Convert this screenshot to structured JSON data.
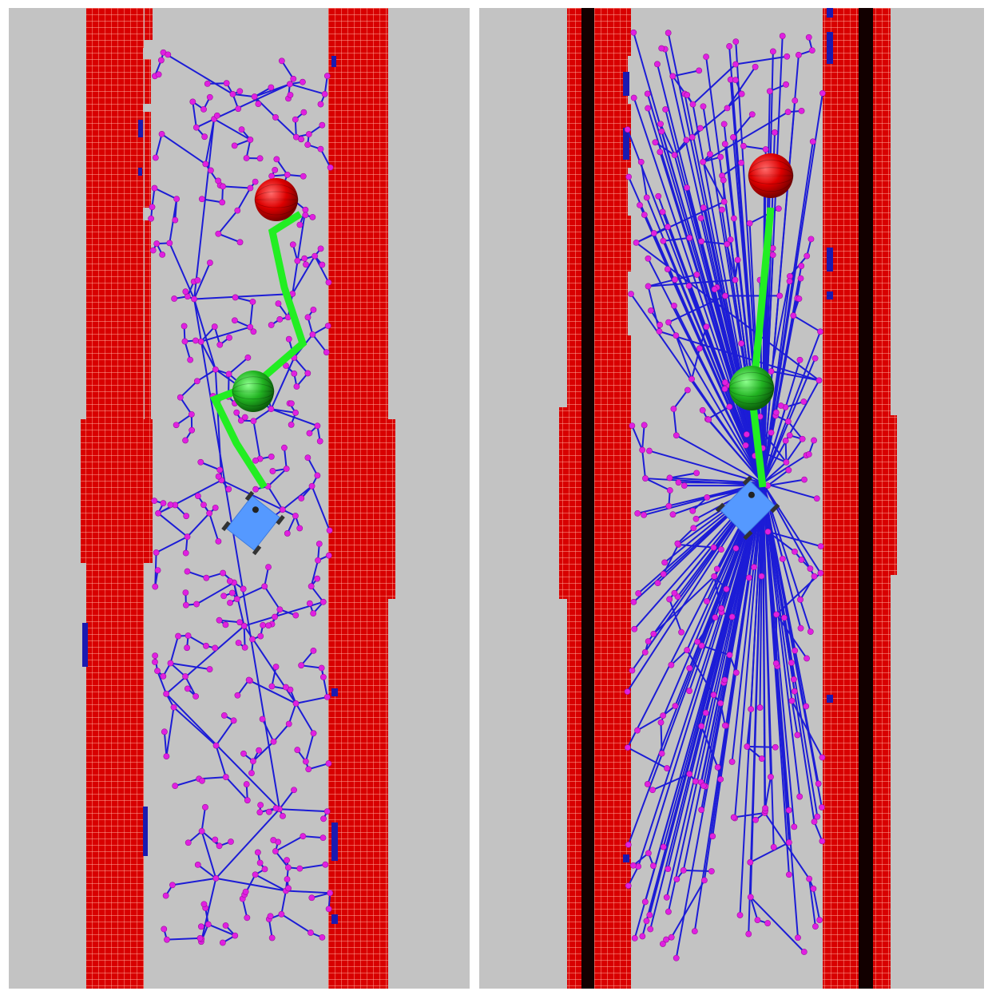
{
  "figure": {
    "panels": [
      {
        "id": "left",
        "tree_style": "random-exploration",
        "seed": 11
      },
      {
        "id": "right",
        "tree_style": "radial-from-robot",
        "seed": 27
      }
    ]
  },
  "colors": {
    "background": "#c3c3c3",
    "obstacle_voxel": "#d80000",
    "obstacle_grid_line": "#ffb0a0",
    "unknown_voxel": "#1a1ab0",
    "wall_core": "#120000",
    "tree_edge": "#1c1cd6",
    "tree_node": "#e020e0",
    "path": "#22ee22",
    "goal_sphere": "#dd0000",
    "intermediate_sphere": "#22b422",
    "robot_body": "#5599ff",
    "robot_wheel": "#333333"
  },
  "icons": {
    "goal": "red-sphere-icon",
    "waypoint": "green-sphere-icon",
    "robot": "robot-icon"
  }
}
